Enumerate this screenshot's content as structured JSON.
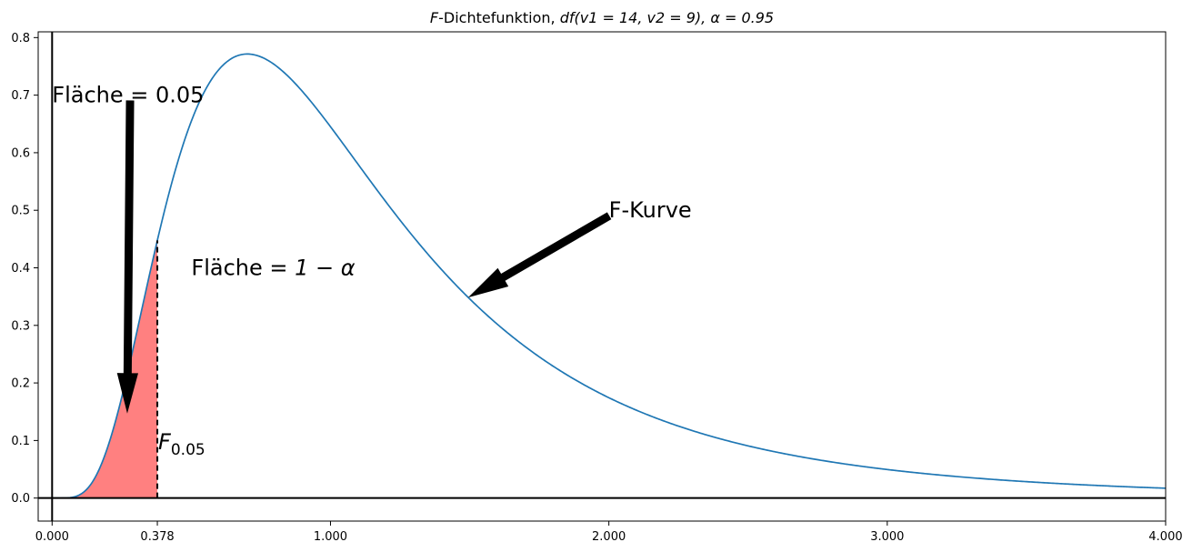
{
  "chart_data": {
    "type": "line",
    "title": {
      "prefix_italic": "F",
      "text": "-Dichtefunktion, ",
      "math": "df(v1 = 14, v2 = 9), α = 0.95"
    },
    "series": [
      {
        "name": "F-Kurve",
        "distribution": "F",
        "df1": 14,
        "df2": 9,
        "color": "#1f77b4",
        "x_range": [
          0,
          4
        ]
      }
    ],
    "shaded_region": {
      "from": 0,
      "to": 0.378,
      "color": "#ff8080",
      "label": "Fläche = 0.05"
    },
    "critical_value": {
      "x": 0.378,
      "label_main": "F",
      "label_sub": "0.05"
    },
    "xlim": [
      -0.05,
      4.0
    ],
    "ylim": [
      -0.04,
      0.81
    ],
    "xticks": [
      {
        "value": 0.0,
        "label": "0.000"
      },
      {
        "value": 0.378,
        "label": "0.378"
      },
      {
        "value": 1.0,
        "label": "1.000"
      },
      {
        "value": 2.0,
        "label": "2.000"
      },
      {
        "value": 3.0,
        "label": "3.000"
      },
      {
        "value": 4.0,
        "label": "4.000"
      }
    ],
    "yticks": [
      {
        "value": 0.0,
        "label": "0.0"
      },
      {
        "value": 0.1,
        "label": "0.1"
      },
      {
        "value": 0.2,
        "label": "0.2"
      },
      {
        "value": 0.3,
        "label": "0.3"
      },
      {
        "value": 0.4,
        "label": "0.4"
      },
      {
        "value": 0.5,
        "label": "0.5"
      },
      {
        "value": 0.6,
        "label": "0.6"
      },
      {
        "value": 0.7,
        "label": "0.7"
      },
      {
        "value": 0.8,
        "label": "0.8"
      }
    ],
    "annotations": [
      {
        "id": "area-left",
        "text": "Fläche = 0.05",
        "text_x": 0.0,
        "text_y": 0.7,
        "arrow_from": [
          0.28,
          0.69
        ],
        "arrow_to": [
          0.27,
          0.15
        ]
      },
      {
        "id": "f-curve",
        "text": "F-Kurve",
        "text_x": 2.0,
        "text_y": 0.5,
        "arrow_from": [
          2.0,
          0.49
        ],
        "arrow_to": [
          1.5,
          0.35
        ]
      },
      {
        "id": "area-right",
        "text_prefix": "Fläche = ",
        "text_math": "1 − α",
        "text_x": 0.5,
        "text_y": 0.4
      }
    ]
  }
}
